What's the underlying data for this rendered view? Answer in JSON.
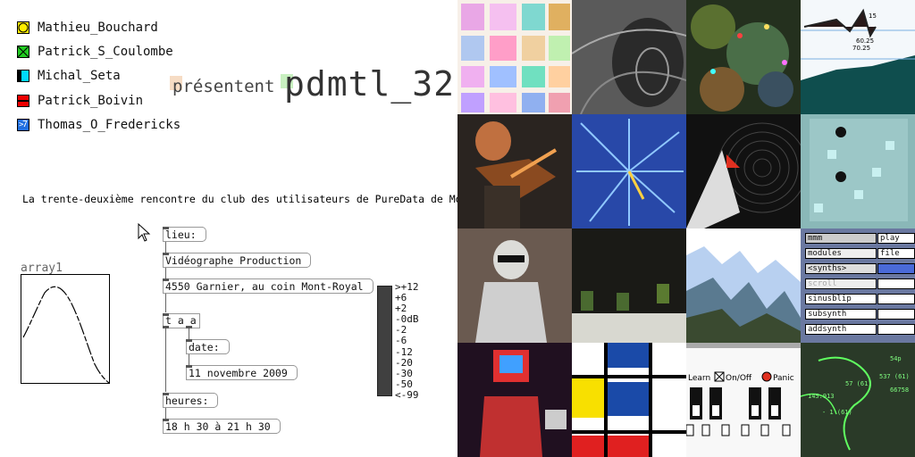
{
  "presenters": [
    {
      "name": "Mathieu_Bouchard",
      "icon": "yellow-circle-icon",
      "color": "#ffee00"
    },
    {
      "name": "Patrick_S_Coulombe",
      "icon": "green-x-icon",
      "color": "#22cc22"
    },
    {
      "name": "Michal_Seta",
      "icon": "cyan-bar-icon",
      "color": "#00d8ff"
    },
    {
      "name": "Patrick_Boivin",
      "icon": "red-bar-icon",
      "color": "#ee0000"
    },
    {
      "name": "Thomas_O_Fredericks",
      "icon": "blue-seven-icon",
      "color": "#1f6fe0",
      "glyph": "7"
    }
  ],
  "headline": {
    "presentent": "présentent",
    "title": "pdmtl_32",
    "subtitle": "La trente-deuxième rencontre du club des utilisateurs de PureData de Montréal"
  },
  "patch": {
    "lieu_label": "lieu:",
    "lieu_value": "Vidéographe Production",
    "address": "4550 Garnier, au coin Mont-Royal",
    "taa": "t a a",
    "date_label": "date:",
    "date_value": "11 novembre 2009",
    "heures_label": "heures:",
    "heures_value": "18 h 30 à 21 h 30"
  },
  "array": {
    "label": "array1"
  },
  "vu": {
    "labels": [
      ">+12",
      "+6",
      "+2",
      "-0dB",
      "-2",
      "-6",
      "-12",
      "-20",
      "-30",
      "-50",
      "<-99"
    ]
  },
  "mosaic": {
    "graph_numbers": [
      "15",
      "60.25",
      "70.25"
    ],
    "controls": {
      "learn": "Learn",
      "onoff": "On/Off",
      "panic": "Panic"
    },
    "menu": {
      "rows": [
        [
          "mmm",
          "play"
        ],
        [
          "modules",
          "file"
        ],
        [
          "<synths>",
          ""
        ],
        [
          "scroll",
          ""
        ],
        [
          "sinusblip",
          ""
        ],
        [
          "subsynth",
          ""
        ],
        [
          "addsynth",
          ""
        ]
      ]
    },
    "map_numbers": [
      "54p",
      "537 (61)",
      "57 (61)",
      "66758",
      "145.913",
      "- 1 (61)"
    ]
  }
}
